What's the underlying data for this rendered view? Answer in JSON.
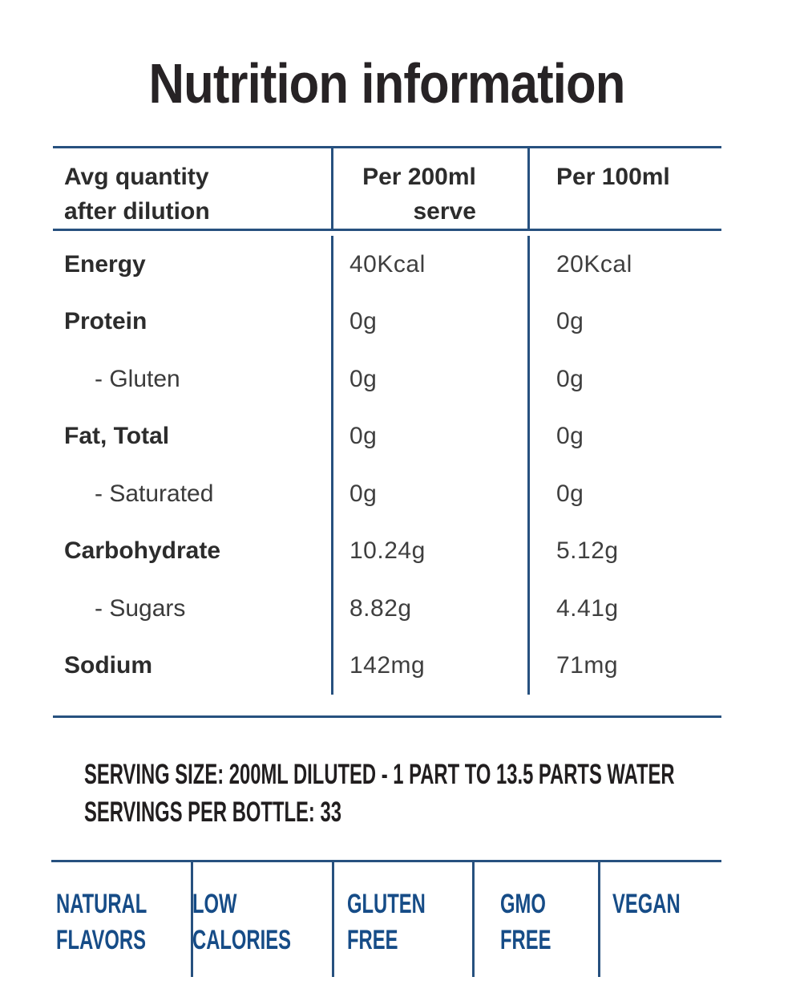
{
  "title": "Nutrition information",
  "table": {
    "header": {
      "col1_line1": "Avg quantity",
      "col1_line2": "after dilution",
      "col2_line1": "Per 200ml",
      "col2_line2": "serve",
      "col3": "Per 100ml"
    },
    "rows": [
      {
        "label": "Energy",
        "per_200ml": "40Kcal",
        "per_100ml": "20Kcal"
      },
      {
        "label": "Protein",
        "per_200ml": "0g",
        "per_100ml": "0g"
      },
      {
        "label": "- Gluten",
        "per_200ml": "0g",
        "per_100ml": "0g"
      },
      {
        "label": "Fat, Total",
        "per_200ml": "0g",
        "per_100ml": "0g"
      },
      {
        "label": "- Saturated",
        "per_200ml": "0g",
        "per_100ml": "0g"
      },
      {
        "label": "Carbohydrate",
        "per_200ml": "10.24g",
        "per_100ml": "5.12g"
      },
      {
        "label": "- Sugars",
        "per_200ml": "8.82g",
        "per_100ml": "4.41g"
      },
      {
        "label": "Sodium",
        "per_200ml": "142mg",
        "per_100ml": "71mg"
      }
    ]
  },
  "serving_info": {
    "line1": "SERVING SIZE: 200ML DILUTED  - 1 PART TO 13.5 PARTS WATER",
    "line2": "SERVINGS PER BOTTLE: 33"
  },
  "badges": [
    {
      "line1": "NATURAL",
      "line2": "FLAVORS"
    },
    {
      "line1": "LOW",
      "line2": "CALORIES"
    },
    {
      "line1": "GLUTEN",
      "line2": "FREE"
    },
    {
      "line1": "GMO",
      "line2": "FREE"
    },
    {
      "line1": "VEGAN",
      "line2": ""
    }
  ],
  "colors": {
    "rule_blue": "#27517f",
    "badge_blue": "#164c87",
    "title_dark": "#272325",
    "label_dark": "#2c2c2c",
    "value_gray": "#3f3f3f"
  }
}
